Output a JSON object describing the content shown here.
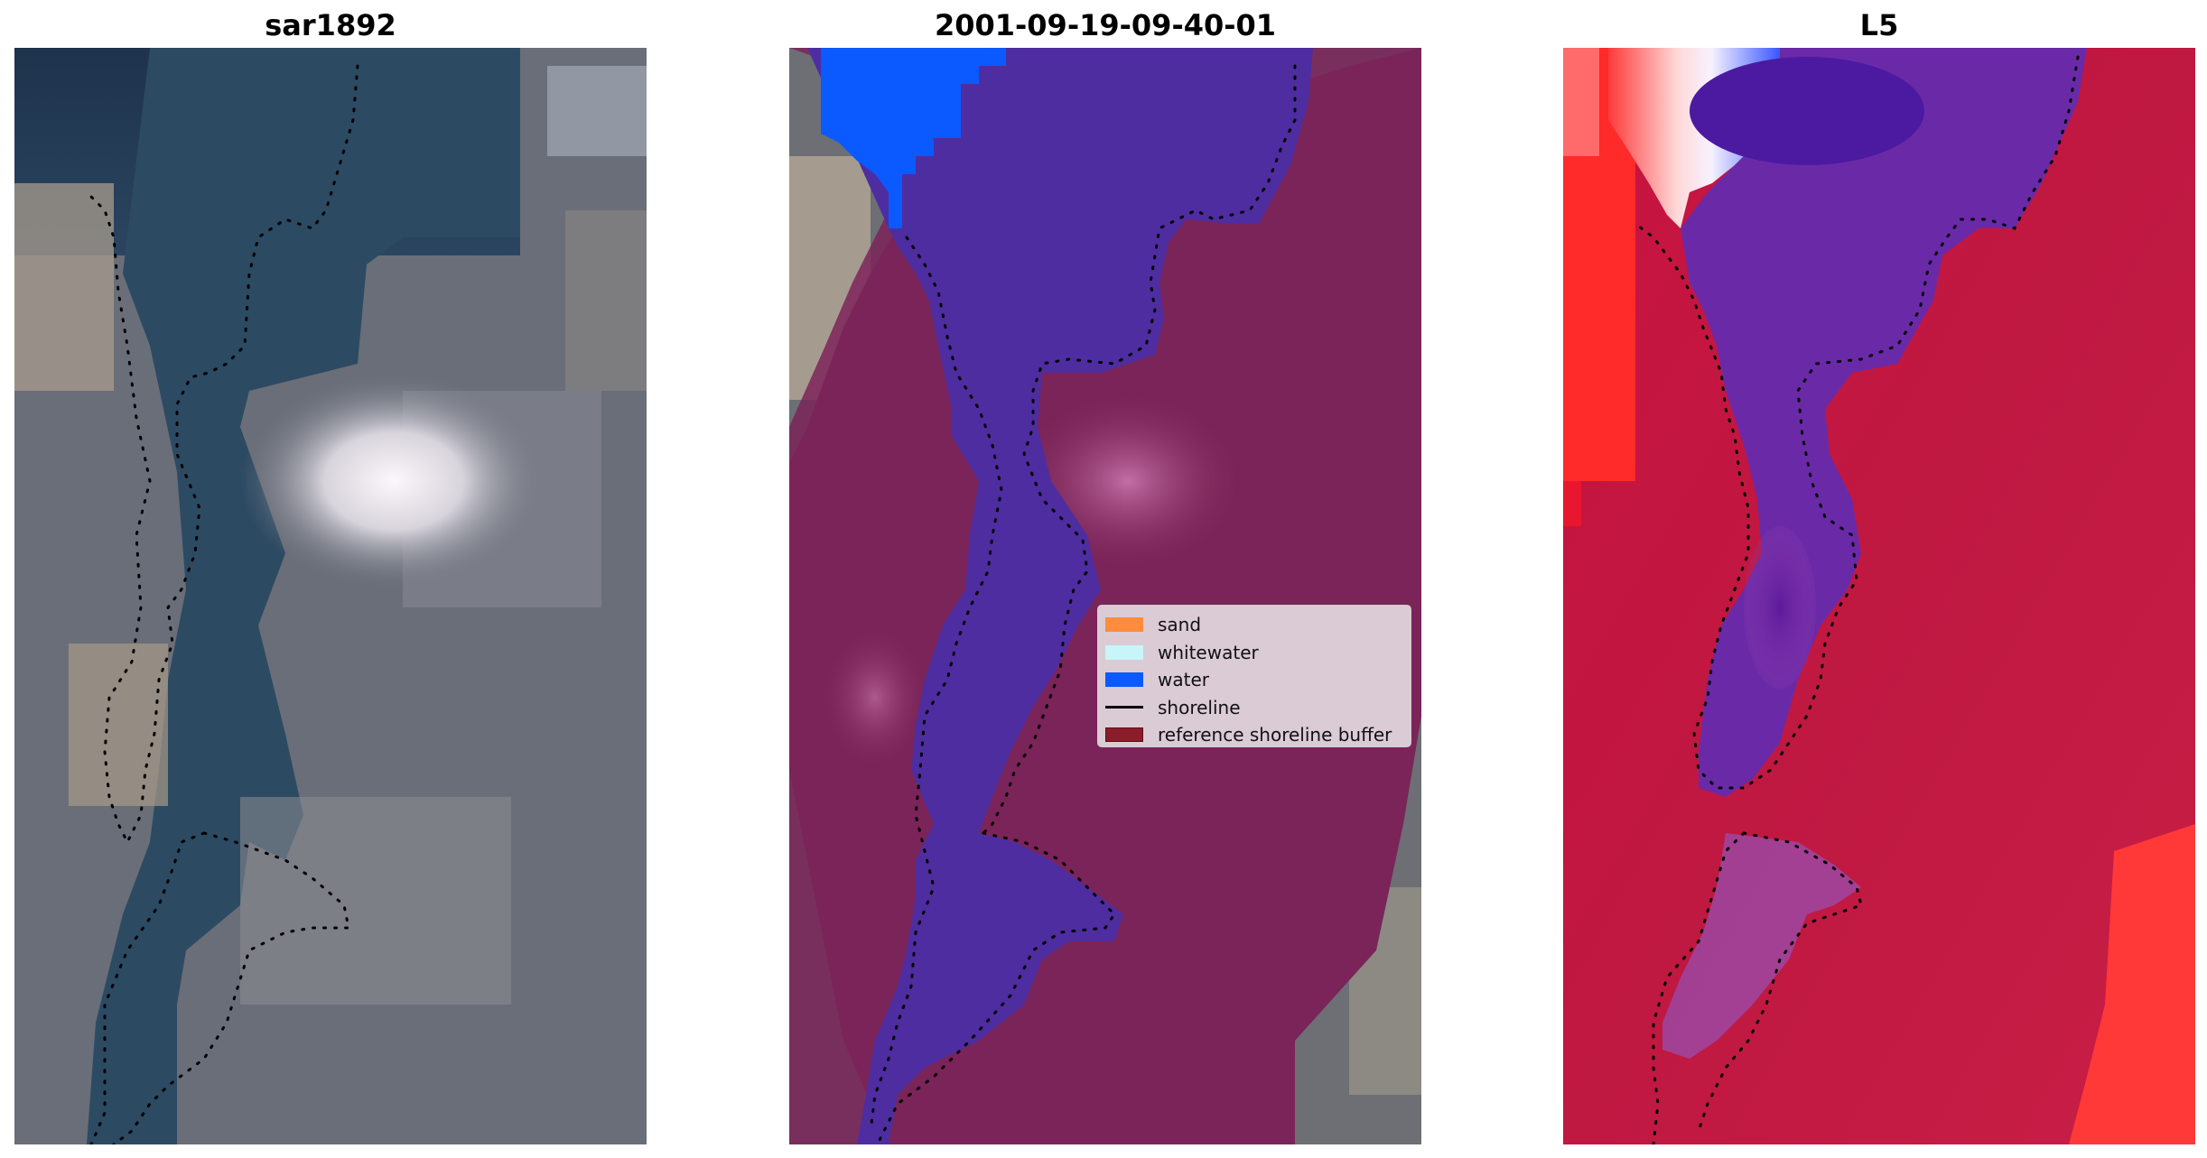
{
  "panels": [
    {
      "title": "sar1892"
    },
    {
      "title": "2001-09-19-09-40-01"
    },
    {
      "title": "L5"
    }
  ],
  "legend": {
    "items": [
      {
        "label": "sand",
        "color": "#ff8c3c",
        "kind": "patch"
      },
      {
        "label": "whitewater",
        "color": "#c8f5fa",
        "kind": "patch"
      },
      {
        "label": "water",
        "color": "#0a5aff",
        "kind": "patch"
      },
      {
        "label": "shoreline",
        "color": "#000000",
        "kind": "line"
      },
      {
        "label": "reference shoreline buffer",
        "color": "#8b1c2a",
        "kind": "patch"
      }
    ]
  },
  "colors": {
    "rgb_water": "#233852",
    "rgb_land": "#6b6e78",
    "classified_water_overlay": "#4a2ba0",
    "buffer_overlay": "#7a2258",
    "index_water": "#5a1a9e",
    "index_land": "#c41a3c",
    "index_high": "#ff2b2b",
    "shoreline_dots": "#000000"
  }
}
